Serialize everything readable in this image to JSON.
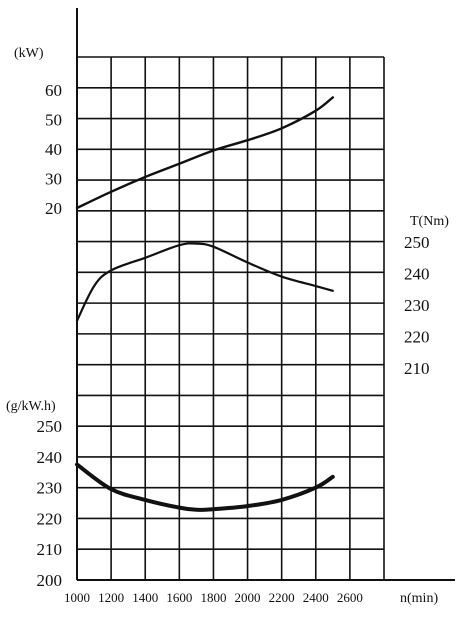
{
  "chart_data": {
    "type": "line",
    "xlabel": "n(min)",
    "x_ticks": [
      "1000",
      "1200",
      "1400",
      "1600",
      "1800",
      "2000",
      "2200",
      "2400",
      "2600"
    ],
    "xlim": [
      1000,
      2600
    ],
    "grid": true,
    "axes": {
      "power": {
        "unit": "(kW)",
        "ticks": [
          "60",
          "50",
          "40",
          "30",
          "20"
        ],
        "side": "left"
      },
      "torque": {
        "unit": "T(Nm)",
        "ticks": [
          "250",
          "240",
          "230",
          "220",
          "210"
        ],
        "side": "right"
      },
      "fuel": {
        "unit": "(g/kW.h)",
        "ticks": [
          "250",
          "240",
          "230",
          "220",
          "210",
          "200"
        ],
        "side": "left"
      }
    },
    "series": [
      {
        "axis": "power",
        "x": [
          1000,
          1200,
          1400,
          1600,
          1800,
          2000,
          2200,
          2400,
          2500
        ],
        "y": [
          20,
          25.5,
          30.5,
          35,
          39.5,
          43,
          47,
          53,
          57.5
        ]
      },
      {
        "axis": "torque",
        "x": [
          1000,
          1100,
          1200,
          1400,
          1600,
          1700,
          1800,
          2000,
          2200,
          2400,
          2500
        ],
        "y": [
          225,
          236,
          241,
          245,
          249,
          249.5,
          248.5,
          243.5,
          239,
          236,
          234.5
        ]
      },
      {
        "axis": "fuel",
        "x": [
          1000,
          1200,
          1400,
          1600,
          1700,
          1800,
          2000,
          2200,
          2400,
          2500
        ],
        "y": [
          237.5,
          229.5,
          226,
          223.5,
          222.8,
          223,
          224,
          226,
          230,
          233.5
        ]
      }
    ]
  }
}
